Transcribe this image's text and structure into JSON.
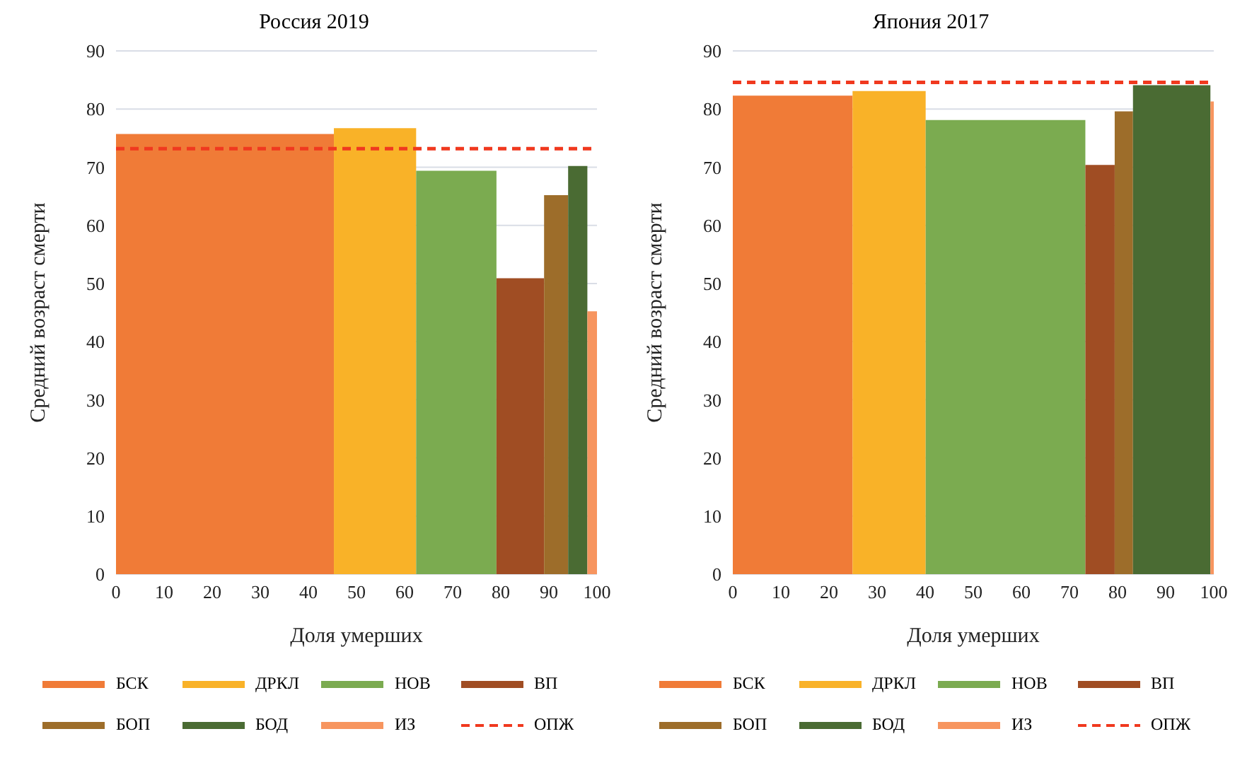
{
  "chart_data": [
    {
      "type": "histogram",
      "title": "Россия 2019",
      "xlabel": "Доля умерших",
      "ylabel": "Средний возраст смерти",
      "categories": [
        "БСК",
        "ДРКЛ",
        "НОВ",
        "ВП",
        "БОП",
        "БОД",
        "ИЗ"
      ],
      "bins": [
        0,
        45.3,
        62.4,
        79.1,
        89,
        94,
        98,
        100
      ],
      "values": [
        75.7,
        76.7,
        69.4,
        50.9,
        65.2,
        70.2,
        45.2
      ],
      "colors": [
        "#f07b37",
        "#f9b228",
        "#7bab50",
        "#a04d23",
        "#9d6d2a",
        "#4a6b33",
        "#f7955f"
      ],
      "xlim": [
        0,
        100
      ],
      "xticks": [
        0,
        10,
        20,
        30,
        40,
        50,
        60,
        70,
        80,
        90,
        100
      ],
      "ylim": [
        0,
        90
      ],
      "yticks": [
        0,
        10,
        20,
        30,
        40,
        50,
        60,
        70,
        80,
        90
      ],
      "ref_lines": [
        {
          "axis": "y",
          "value": 73.2,
          "label": "ОПЖ",
          "color": "#f0391f",
          "line_style": "dashed"
        }
      ],
      "grid": "y",
      "legend": "bottom"
    },
    {
      "type": "histogram",
      "title": "Япония 2017",
      "xlabel": "Доля умерших",
      "ylabel": "Средний возраст смерти",
      "categories": [
        "БСК",
        "ДРКЛ",
        "НОВ",
        "ВП",
        "БОП",
        "БОД",
        "ИЗ"
      ],
      "bins": [
        0,
        24.9,
        40.1,
        73.3,
        79.4,
        83.2,
        99.3,
        100
      ],
      "values": [
        82.3,
        83.1,
        78.1,
        70.4,
        79.6,
        84.1,
        81.3
      ],
      "colors": [
        "#f07b37",
        "#f9b228",
        "#7bab50",
        "#a04d23",
        "#9d6d2a",
        "#4a6b33",
        "#f7955f"
      ],
      "xlim": [
        0,
        100
      ],
      "xticks": [
        0,
        10,
        20,
        30,
        40,
        50,
        60,
        70,
        80,
        90,
        100
      ],
      "ylim": [
        0,
        90
      ],
      "yticks": [
        0,
        10,
        20,
        30,
        40,
        50,
        60,
        70,
        80,
        90
      ],
      "ref_lines": [
        {
          "axis": "y",
          "value": 84.6,
          "label": "ОПЖ",
          "color": "#f0391f",
          "line_style": "dashed"
        }
      ],
      "grid": "y",
      "legend": "bottom"
    }
  ]
}
